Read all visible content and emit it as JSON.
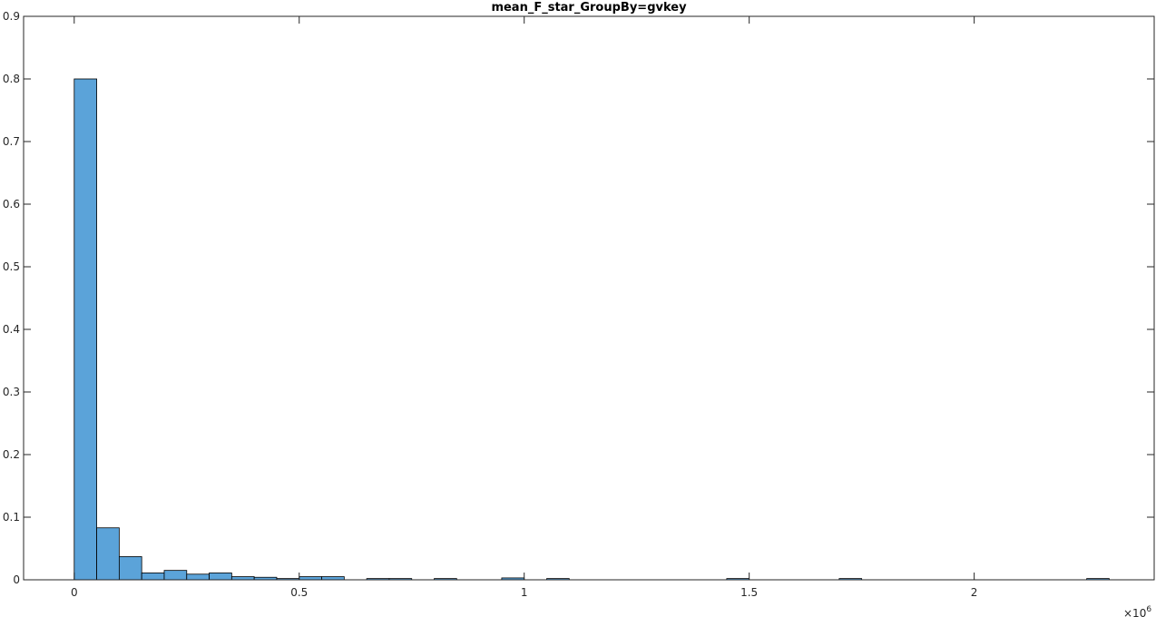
{
  "chart_data": {
    "type": "bar",
    "title": "mean_F_star_GroupBy=gvkey",
    "xlabel": "",
    "ylabel": "",
    "x_exponent_label": "×10",
    "x_exponent_power": "6",
    "xlim": [
      -0.1125,
      2.4
    ],
    "ylim": [
      0,
      0.9
    ],
    "grid": false,
    "bar_color": "#5ba3d9",
    "bin_width": 0.05,
    "x_ticks": [
      {
        "value": 0,
        "label": "0"
      },
      {
        "value": 0.5,
        "label": "0.5"
      },
      {
        "value": 1,
        "label": "1"
      },
      {
        "value": 1.5,
        "label": "1.5"
      },
      {
        "value": 2,
        "label": "2"
      }
    ],
    "y_ticks": [
      {
        "value": 0,
        "label": "0"
      },
      {
        "value": 0.1,
        "label": "0.1"
      },
      {
        "value": 0.2,
        "label": "0.2"
      },
      {
        "value": 0.3,
        "label": "0.3"
      },
      {
        "value": 0.4,
        "label": "0.4"
      },
      {
        "value": 0.5,
        "label": "0.5"
      },
      {
        "value": 0.6,
        "label": "0.6"
      },
      {
        "value": 0.7,
        "label": "0.7"
      },
      {
        "value": 0.8,
        "label": "0.8"
      },
      {
        "value": 0.9,
        "label": "0.9"
      }
    ],
    "bins": [
      {
        "start": 0.0,
        "value": 0.8
      },
      {
        "start": 0.05,
        "value": 0.083
      },
      {
        "start": 0.1,
        "value": 0.037
      },
      {
        "start": 0.15,
        "value": 0.011
      },
      {
        "start": 0.2,
        "value": 0.015
      },
      {
        "start": 0.25,
        "value": 0.009
      },
      {
        "start": 0.3,
        "value": 0.011
      },
      {
        "start": 0.35,
        "value": 0.005
      },
      {
        "start": 0.4,
        "value": 0.004
      },
      {
        "start": 0.45,
        "value": 0.002
      },
      {
        "start": 0.5,
        "value": 0.005
      },
      {
        "start": 0.55,
        "value": 0.005
      },
      {
        "start": 0.65,
        "value": 0.002
      },
      {
        "start": 0.7,
        "value": 0.002
      },
      {
        "start": 0.8,
        "value": 0.002
      },
      {
        "start": 0.95,
        "value": 0.003
      },
      {
        "start": 1.05,
        "value": 0.002
      },
      {
        "start": 1.45,
        "value": 0.002
      },
      {
        "start": 1.7,
        "value": 0.002
      },
      {
        "start": 2.25,
        "value": 0.002
      }
    ]
  }
}
